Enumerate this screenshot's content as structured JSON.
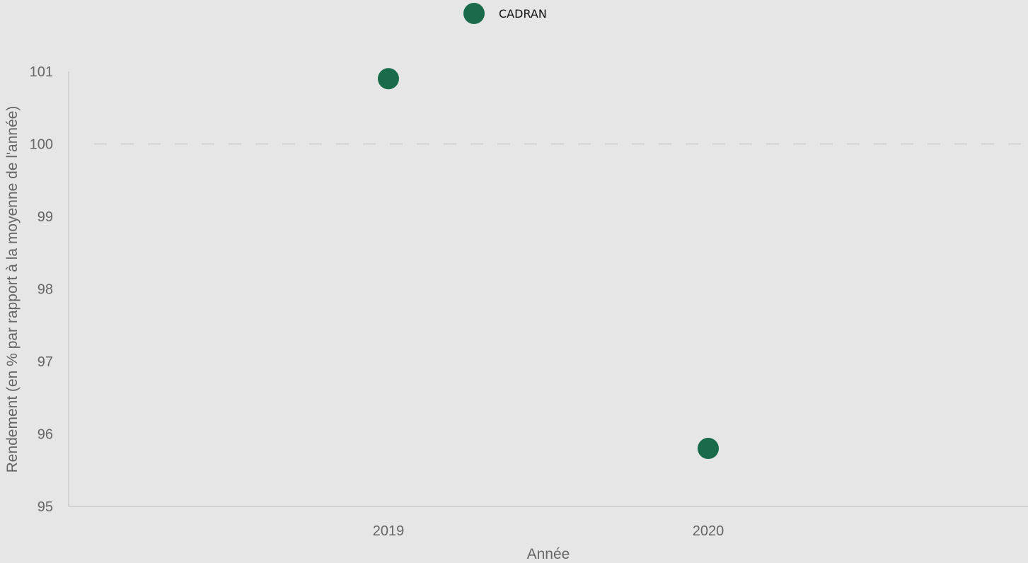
{
  "chart_data": {
    "type": "scatter",
    "title": "",
    "xlabel": "Année",
    "ylabel": "Rendement (en % par rapport à la moyenne de l'année)",
    "categories": [
      "2019",
      "2020"
    ],
    "series": [
      {
        "name": "CADRAN",
        "color": "#1a6b4a",
        "points": [
          {
            "x": "2019",
            "y": 100.9
          },
          {
            "x": "2020",
            "y": 95.8
          }
        ]
      }
    ],
    "ylim": [
      95,
      101
    ],
    "yticks": [
      "95",
      "96",
      "97",
      "98",
      "99",
      "100",
      "101"
    ],
    "reference_line": {
      "y": 100,
      "style": "dashed"
    },
    "grid": false,
    "legend_position": "top-center"
  }
}
